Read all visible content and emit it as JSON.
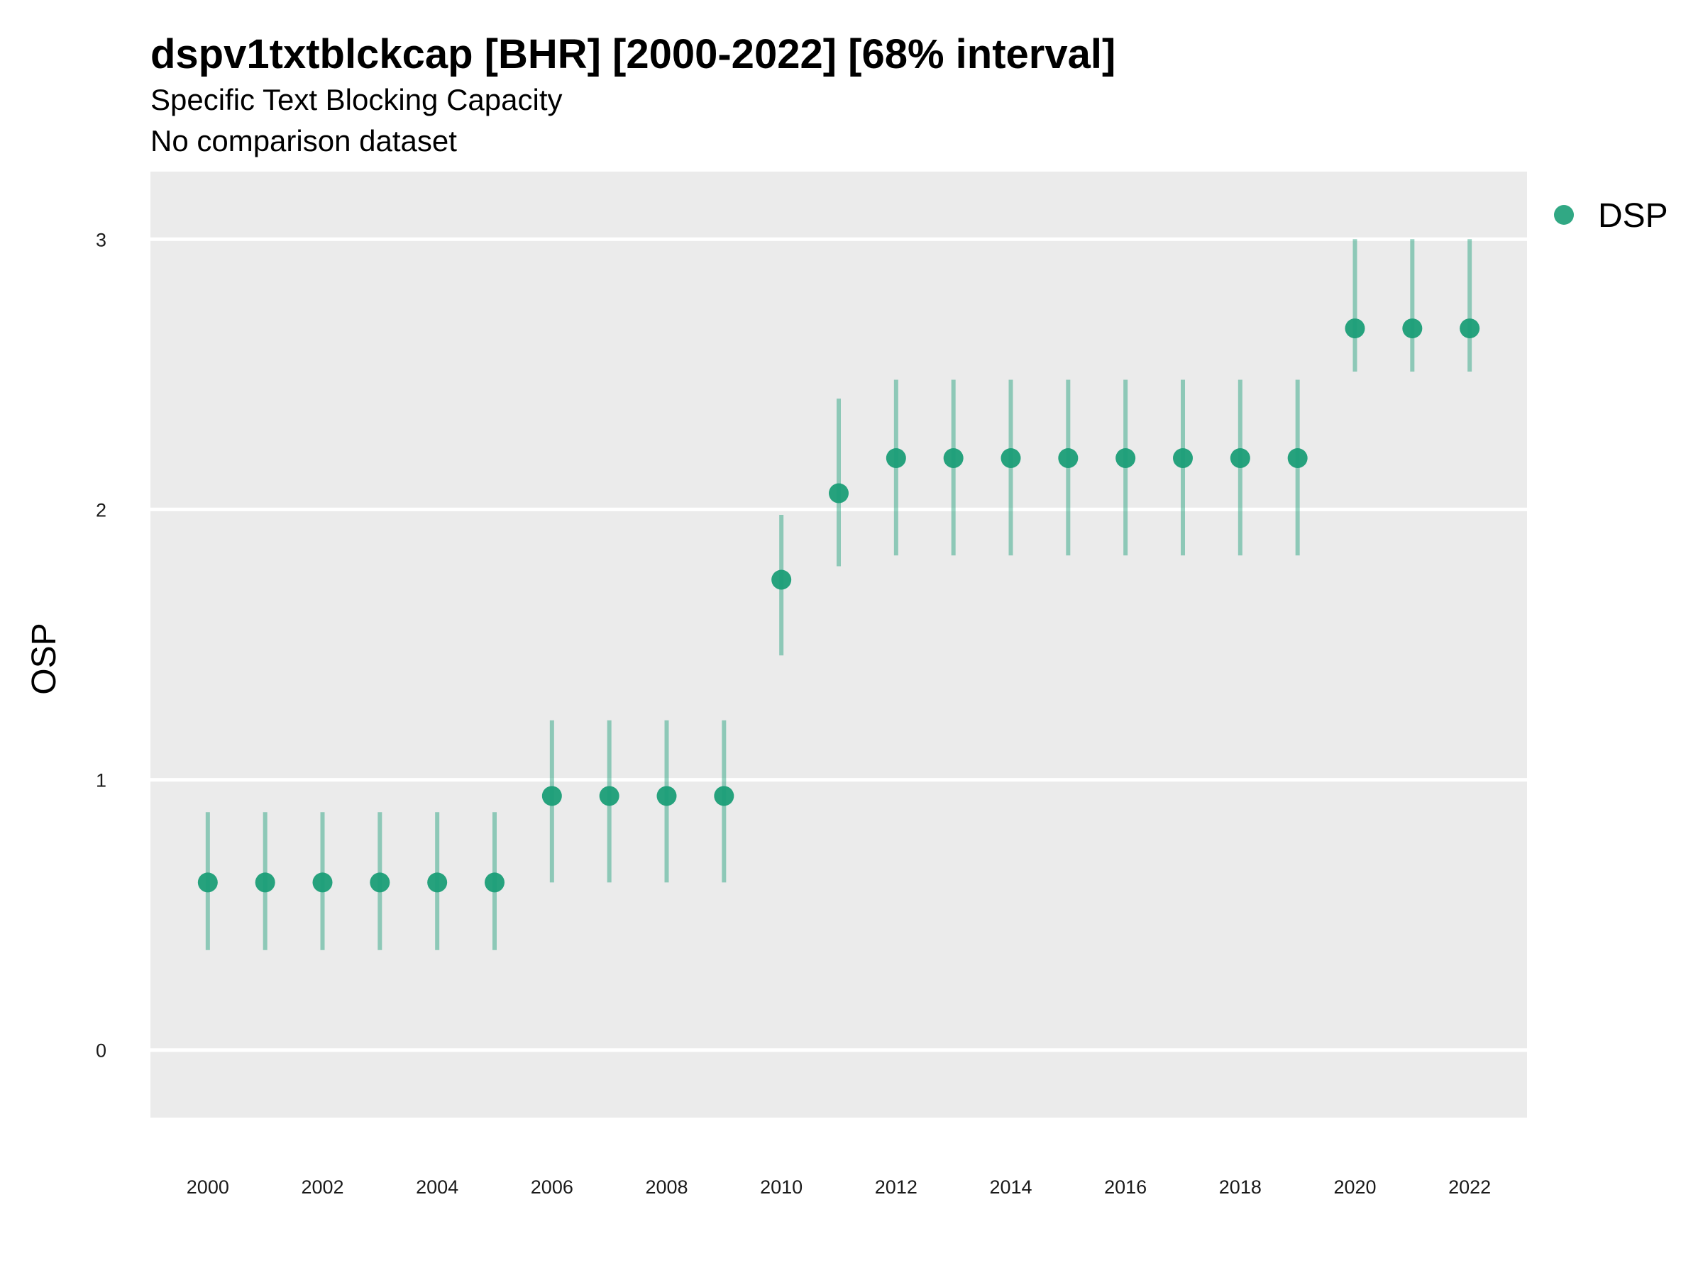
{
  "chart_data": {
    "type": "scatter",
    "title": "dspv1txtblckcap [BHR] [2000-2022] [68% interval]",
    "subtitle": "Specific Text Blocking Capacity",
    "caption": "No comparison dataset",
    "xlabel": "",
    "ylabel": "OSP",
    "xlim": [
      1999,
      2023
    ],
    "ylim": [
      -0.25,
      3.25
    ],
    "x_ticks": [
      2000,
      2002,
      2004,
      2006,
      2008,
      2010,
      2012,
      2014,
      2016,
      2018,
      2020,
      2022
    ],
    "y_ticks": [
      0,
      1,
      2,
      3
    ],
    "grid": true,
    "legend_position": "top-right",
    "colors": {
      "panel_background": "#ebebeb",
      "grid": "#ffffff",
      "point": "#1b9e77",
      "interval": "#1b9e77"
    },
    "series": [
      {
        "name": "DSP",
        "x": [
          2000,
          2001,
          2002,
          2003,
          2004,
          2005,
          2006,
          2007,
          2008,
          2009,
          2010,
          2011,
          2012,
          2013,
          2014,
          2015,
          2016,
          2017,
          2018,
          2019,
          2020,
          2021,
          2022
        ],
        "y": [
          0.62,
          0.62,
          0.62,
          0.62,
          0.62,
          0.62,
          0.94,
          0.94,
          0.94,
          0.94,
          1.74,
          2.06,
          2.19,
          2.19,
          2.19,
          2.19,
          2.19,
          2.19,
          2.19,
          2.19,
          2.67,
          2.67,
          2.67
        ],
        "lower": [
          0.37,
          0.37,
          0.37,
          0.37,
          0.37,
          0.37,
          0.62,
          0.62,
          0.62,
          0.62,
          1.46,
          1.79,
          1.83,
          1.83,
          1.83,
          1.83,
          1.83,
          1.83,
          1.83,
          1.83,
          2.51,
          2.51,
          2.51
        ],
        "upper": [
          0.88,
          0.88,
          0.88,
          0.88,
          0.88,
          0.88,
          1.22,
          1.22,
          1.22,
          1.22,
          1.98,
          2.41,
          2.48,
          2.48,
          2.48,
          2.48,
          2.48,
          2.48,
          2.48,
          2.48,
          3.0,
          3.0,
          3.0
        ]
      }
    ]
  }
}
